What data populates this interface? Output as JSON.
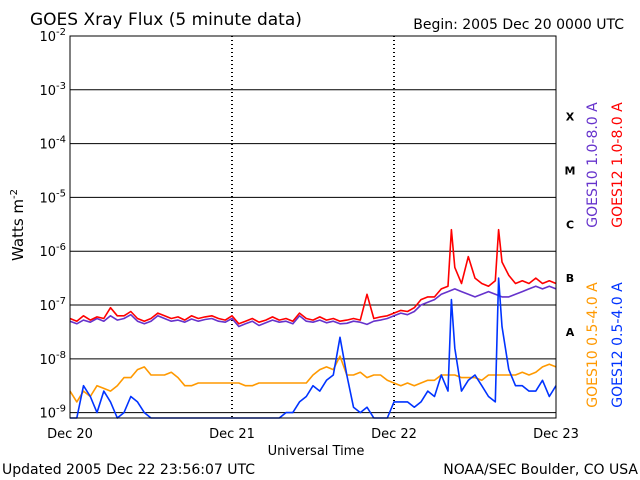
{
  "chart_data": {
    "type": "line",
    "title": "GOES Xray Flux (5 minute data)",
    "begin_label": "Begin:  2005 Dec 20 0000 UTC",
    "xlabel": "Universal Time",
    "ylabel": "Watts m",
    "ylabel_sup": "-2",
    "xlim": [
      0,
      72
    ],
    "ylim_log10": [
      -9.1,
      -2
    ],
    "yscale": "log",
    "grid": "horizontal lines at each decade",
    "x_ticks": [
      {
        "label": "Dec 20",
        "value": 0
      },
      {
        "label": "Dec 21",
        "value": 24
      },
      {
        "label": "Dec 22",
        "value": 48
      },
      {
        "label": "Dec 23",
        "value": 72
      }
    ],
    "y_ticks": [
      {
        "base": "10",
        "exp": "-2",
        "value": -2
      },
      {
        "base": "10",
        "exp": "-3",
        "value": -3
      },
      {
        "base": "10",
        "exp": "-4",
        "value": -4
      },
      {
        "base": "10",
        "exp": "-5",
        "value": -5
      },
      {
        "base": "10",
        "exp": "-6",
        "value": -6
      },
      {
        "base": "10",
        "exp": "-7",
        "value": -7
      },
      {
        "base": "10",
        "exp": "-8",
        "value": -8
      },
      {
        "base": "10",
        "exp": "-9",
        "value": -9
      }
    ],
    "class_labels": [
      {
        "label": "X",
        "value": -3.5
      },
      {
        "label": "M",
        "value": -4.5
      },
      {
        "label": "C",
        "value": -5.5
      },
      {
        "label": "B",
        "value": -6.5
      },
      {
        "label": "A",
        "value": -7.5
      }
    ],
    "x_units": "hours since begin",
    "y_units": "log10(W m^-2)",
    "series": [
      {
        "name": "GOES10 1.0-8.0 A",
        "color": "#6633cc",
        "x": [
          0,
          1,
          2,
          3,
          4,
          5,
          6,
          7,
          8,
          9,
          10,
          11,
          12,
          13,
          14,
          15,
          16,
          17,
          18,
          19,
          20,
          21,
          22,
          23,
          24,
          25,
          26,
          27,
          28,
          29,
          30,
          31,
          32,
          33,
          34,
          35,
          36,
          37,
          38,
          39,
          40,
          41,
          42,
          43,
          44,
          45,
          46,
          47,
          48,
          49,
          50,
          51,
          52,
          53,
          54,
          55,
          56,
          57,
          58,
          59,
          60,
          61,
          62,
          63,
          64,
          65,
          66,
          67,
          68,
          69,
          70,
          71,
          72
        ],
        "y": [
          -7.3,
          -7.35,
          -7.28,
          -7.32,
          -7.25,
          -7.3,
          -7.2,
          -7.28,
          -7.25,
          -7.18,
          -7.3,
          -7.35,
          -7.3,
          -7.2,
          -7.25,
          -7.3,
          -7.28,
          -7.32,
          -7.26,
          -7.3,
          -7.27,
          -7.25,
          -7.3,
          -7.32,
          -7.25,
          -7.4,
          -7.35,
          -7.3,
          -7.38,
          -7.33,
          -7.28,
          -7.32,
          -7.3,
          -7.35,
          -7.2,
          -7.3,
          -7.32,
          -7.28,
          -7.33,
          -7.3,
          -7.35,
          -7.34,
          -7.3,
          -7.32,
          -7.36,
          -7.3,
          -7.28,
          -7.25,
          -7.2,
          -7.15,
          -7.18,
          -7.12,
          -7.0,
          -6.95,
          -6.9,
          -6.8,
          -6.75,
          -6.7,
          -6.75,
          -6.8,
          -6.85,
          -6.8,
          -6.75,
          -6.8,
          -6.85,
          -6.85,
          -6.8,
          -6.75,
          -6.7,
          -6.65,
          -6.7,
          -6.65,
          -6.7
        ]
      },
      {
        "name": "GOES12 1.0-8.0 A",
        "color": "#ff0000",
        "x": [
          0,
          1,
          2,
          3,
          4,
          5,
          6,
          7,
          8,
          9,
          10,
          11,
          12,
          13,
          14,
          15,
          16,
          17,
          18,
          19,
          20,
          21,
          22,
          23,
          24,
          25,
          26,
          27,
          28,
          29,
          30,
          31,
          32,
          33,
          34,
          35,
          36,
          37,
          38,
          39,
          40,
          41,
          42,
          43,
          44,
          45,
          46,
          47,
          48,
          49,
          50,
          51,
          52,
          53,
          54,
          55,
          56,
          56.5,
          57,
          58,
          59,
          60,
          61,
          62,
          63,
          63.5,
          64,
          65,
          66,
          67,
          68,
          69,
          70,
          71,
          72
        ],
        "y": [
          -7.25,
          -7.3,
          -7.2,
          -7.28,
          -7.22,
          -7.25,
          -7.05,
          -7.2,
          -7.2,
          -7.12,
          -7.25,
          -7.3,
          -7.25,
          -7.15,
          -7.2,
          -7.25,
          -7.22,
          -7.28,
          -7.2,
          -7.25,
          -7.22,
          -7.2,
          -7.25,
          -7.28,
          -7.2,
          -7.35,
          -7.3,
          -7.25,
          -7.32,
          -7.28,
          -7.22,
          -7.28,
          -7.25,
          -7.3,
          -7.15,
          -7.25,
          -7.28,
          -7.22,
          -7.28,
          -7.25,
          -7.3,
          -7.28,
          -7.25,
          -7.28,
          -6.8,
          -7.25,
          -7.22,
          -7.2,
          -7.15,
          -7.1,
          -7.12,
          -7.05,
          -6.9,
          -6.85,
          -6.85,
          -6.7,
          -6.65,
          -5.6,
          -6.3,
          -6.6,
          -6.1,
          -6.5,
          -6.6,
          -6.65,
          -6.55,
          -5.6,
          -6.2,
          -6.45,
          -6.6,
          -6.55,
          -6.6,
          -6.5,
          -6.6,
          -6.55,
          -6.6
        ]
      },
      {
        "name": "GOES10 0.5-4.0 A",
        "color": "#ff9900",
        "x": [
          0,
          1,
          2,
          3,
          4,
          5,
          6,
          7,
          8,
          9,
          10,
          11,
          12,
          13,
          14,
          15,
          16,
          17,
          18,
          19,
          20,
          21,
          22,
          23,
          24,
          25,
          26,
          27,
          28,
          29,
          30,
          31,
          32,
          33,
          34,
          35,
          36,
          37,
          38,
          39,
          40,
          41,
          42,
          43,
          44,
          45,
          46,
          47,
          48,
          49,
          50,
          51,
          52,
          53,
          54,
          55,
          56,
          57,
          58,
          59,
          60,
          61,
          62,
          63,
          64,
          65,
          66,
          67,
          68,
          69,
          70,
          71,
          72
        ],
        "y": [
          -8.6,
          -8.8,
          -8.6,
          -8.7,
          -8.5,
          -8.55,
          -8.6,
          -8.5,
          -8.35,
          -8.35,
          -8.2,
          -8.15,
          -8.3,
          -8.3,
          -8.3,
          -8.25,
          -8.35,
          -8.5,
          -8.5,
          -8.45,
          -8.45,
          -8.45,
          -8.45,
          -8.45,
          -8.45,
          -8.45,
          -8.5,
          -8.5,
          -8.45,
          -8.45,
          -8.45,
          -8.45,
          -8.45,
          -8.45,
          -8.45,
          -8.45,
          -8.3,
          -8.2,
          -8.15,
          -8.2,
          -7.95,
          -8.3,
          -8.3,
          -8.25,
          -8.35,
          -8.3,
          -8.3,
          -8.4,
          -8.45,
          -8.5,
          -8.45,
          -8.5,
          -8.45,
          -8.4,
          -8.4,
          -8.3,
          -8.3,
          -8.3,
          -8.35,
          -8.35,
          -8.35,
          -8.4,
          -8.3,
          -8.3,
          -8.3,
          -8.3,
          -8.3,
          -8.25,
          -8.3,
          -8.25,
          -8.15,
          -8.1,
          -8.15
        ]
      },
      {
        "name": "GOES12 0.5-4.0 A",
        "color": "#0033ff",
        "x": [
          0,
          1,
          2,
          3,
          4,
          5,
          6,
          7,
          8,
          9,
          10,
          11,
          12,
          13,
          14,
          15,
          16,
          17,
          18,
          19,
          20,
          21,
          22,
          23,
          24,
          25,
          26,
          27,
          28,
          29,
          30,
          31,
          32,
          33,
          34,
          35,
          36,
          37,
          38,
          39,
          40,
          41,
          42,
          43,
          44,
          45,
          46,
          47,
          48,
          49,
          50,
          51,
          52,
          53,
          54,
          55,
          56,
          56.5,
          57,
          58,
          59,
          60,
          61,
          62,
          63,
          63.5,
          64,
          65,
          66,
          67,
          68,
          69,
          70,
          71,
          72
        ],
        "y": [
          -9.1,
          -9.1,
          -8.5,
          -8.7,
          -9.0,
          -8.6,
          -8.8,
          -9.1,
          -9.0,
          -8.7,
          -8.8,
          -9.0,
          -9.1,
          -9.1,
          -9.1,
          -9.1,
          -9.1,
          -9.1,
          -9.1,
          -9.1,
          -9.1,
          -9.1,
          -9.1,
          -9.1,
          -9.1,
          -9.1,
          -9.1,
          -9.1,
          -9.1,
          -9.1,
          -9.1,
          -9.1,
          -9.0,
          -9.0,
          -8.8,
          -8.7,
          -8.5,
          -8.6,
          -8.4,
          -8.3,
          -7.6,
          -8.3,
          -8.9,
          -9.0,
          -8.9,
          -9.1,
          -9.1,
          -9.1,
          -8.8,
          -8.8,
          -8.8,
          -8.9,
          -8.8,
          -8.6,
          -8.7,
          -8.3,
          -8.6,
          -6.9,
          -7.8,
          -8.6,
          -8.4,
          -8.3,
          -8.5,
          -8.7,
          -8.8,
          -6.5,
          -7.4,
          -8.2,
          -8.5,
          -8.5,
          -8.6,
          -8.6,
          -8.4,
          -8.7,
          -8.5
        ]
      }
    ]
  },
  "footer": {
    "updated": "Updated 2005 Dec 22 23:56:07 UTC",
    "credit": "NOAA/SEC Boulder, CO USA"
  }
}
